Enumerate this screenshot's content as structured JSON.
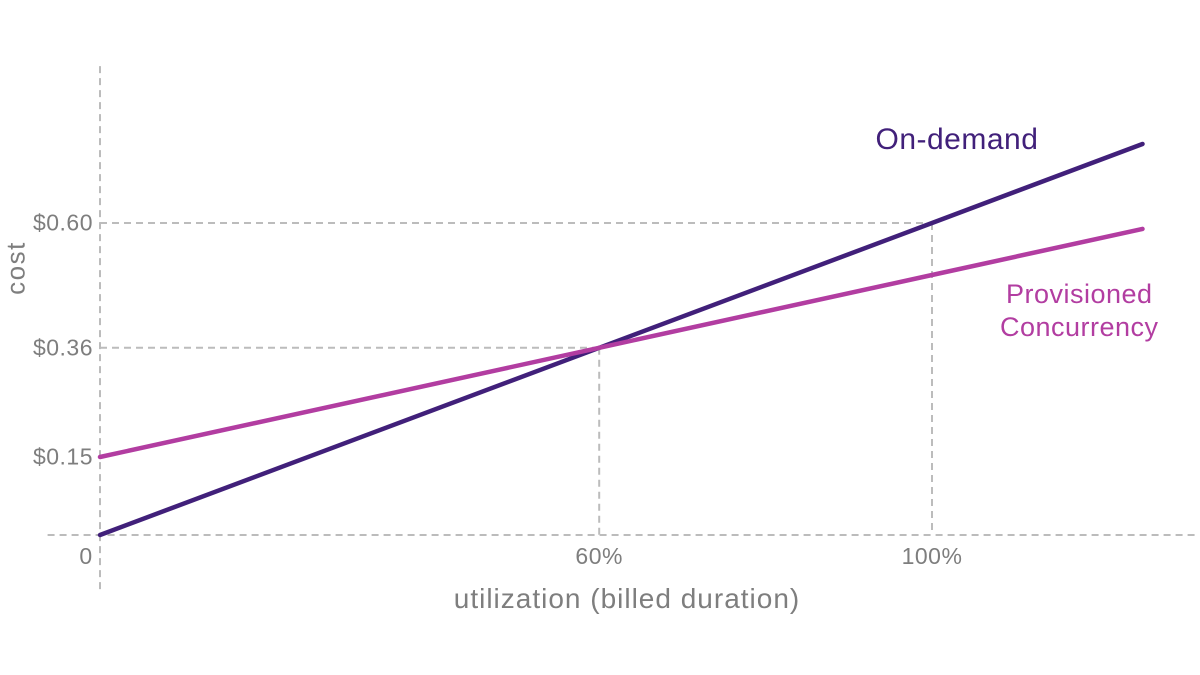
{
  "chart_data": {
    "type": "line",
    "title": "",
    "xlabel": "utilization (billed duration)",
    "ylabel": "cost",
    "x_unit": "%",
    "y_unit": "$",
    "xlim": [
      -6.3,
      131.6
    ],
    "ylim": [
      -0.104,
      0.902
    ],
    "grid": "dashed L-shaped guides at key points only",
    "legend_position": "inline labels next to lines",
    "colors": {
      "grid": "#bcbcbc",
      "text": "#7e7e7e",
      "on_demand": "#41207a",
      "provisioned": "#b23da1"
    },
    "x_ticks": [
      {
        "value": 0,
        "label": "0",
        "dx": -14
      },
      {
        "value": 60,
        "label": "60%",
        "dx": 0
      },
      {
        "value": 100,
        "label": "100%",
        "dx": 0
      }
    ],
    "y_ticks": [
      {
        "value": 0.15,
        "label": "$0.15"
      },
      {
        "value": 0.36,
        "label": "$0.36"
      },
      {
        "value": 0.6,
        "label": "$0.60"
      }
    ],
    "guides": [
      {
        "x": 60,
        "y": 0.36
      },
      {
        "x": 100,
        "y": 0.6
      }
    ],
    "intersection": {
      "x": 60,
      "y": 0.36
    },
    "series": [
      {
        "name": "On-demand",
        "color": "#41207a",
        "points": [
          [
            0,
            0
          ],
          [
            60,
            0.36
          ],
          [
            100,
            0.6
          ],
          [
            125.3,
            0.752
          ]
        ],
        "label_at": [
          103,
          0.76
        ]
      },
      {
        "name": "Provisioned Concurrency",
        "color": "#b23da1",
        "points": [
          [
            0,
            0.15
          ],
          [
            60,
            0.36
          ],
          [
            100,
            0.5
          ],
          [
            125.3,
            0.5886
          ]
        ],
        "label_at": [
          117.7,
          0.43
        ]
      }
    ]
  }
}
